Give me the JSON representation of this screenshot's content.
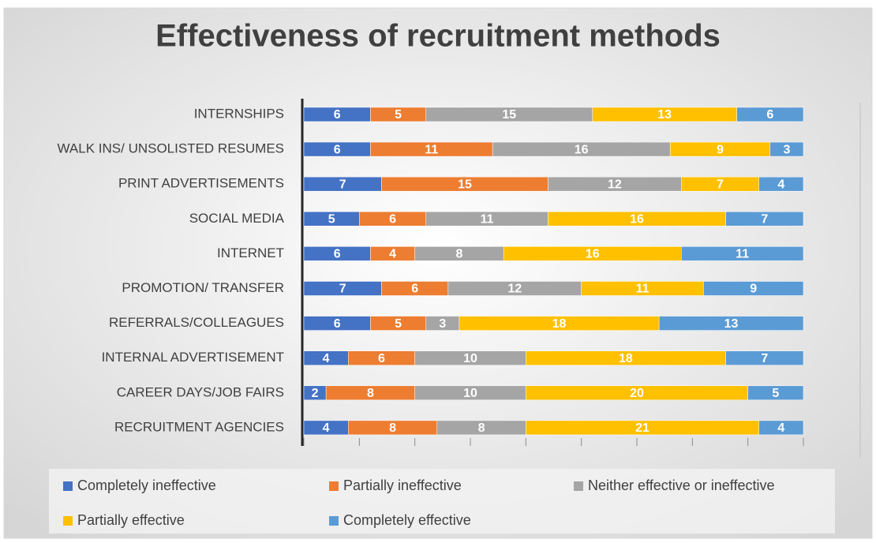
{
  "chart_data": {
    "type": "stacked-barh",
    "title": "Effectiveness of recruitment methods",
    "categories": [
      "INTERNSHIPS",
      "WALK INS/ UNSOLISTED RESUMES",
      "PRINT ADVERTISEMENTS",
      "SOCIAL MEDIA",
      "INTERNET",
      "PROMOTION/ TRANSFER",
      "REFERRALS/COLLEAGUES",
      "INTERNAL ADVERTISEMENT",
      "CAREER DAYS/JOB FAIRS",
      "RECRUITMENT AGENCIES"
    ],
    "series": [
      {
        "name": "Completely ineffective",
        "color": "#4472c4",
        "values": [
          6,
          6,
          7,
          5,
          6,
          7,
          6,
          4,
          2,
          4
        ]
      },
      {
        "name": "Partially ineffective",
        "color": "#ed7d31",
        "values": [
          5,
          11,
          15,
          6,
          4,
          6,
          5,
          6,
          8,
          8
        ]
      },
      {
        "name": "Neither effective or ineffective",
        "color": "#a5a5a5",
        "values": [
          15,
          16,
          12,
          11,
          8,
          12,
          3,
          10,
          10,
          8
        ]
      },
      {
        "name": "Partially effective",
        "color": "#ffc000",
        "values": [
          13,
          9,
          7,
          16,
          16,
          11,
          18,
          18,
          20,
          21
        ]
      },
      {
        "name": "Completely effective",
        "color": "#5b9bd5",
        "values": [
          6,
          3,
          4,
          7,
          11,
          9,
          13,
          7,
          5,
          4
        ]
      }
    ],
    "xlim": [
      0,
      45
    ],
    "xticks": [
      0,
      5,
      10,
      15,
      20,
      25,
      30,
      35,
      40,
      45
    ],
    "legend": "bottom"
  }
}
